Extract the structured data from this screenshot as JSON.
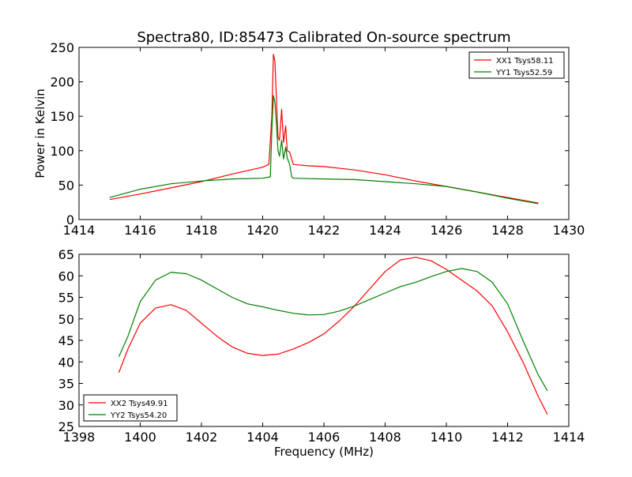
{
  "chart_data": {
    "type": "line",
    "title": "Spectra80, ID:85473 Calibrated On-source spectrum",
    "panels": [
      {
        "xlim": [
          1414,
          1430
        ],
        "ylim": [
          0,
          250
        ],
        "xticks": [
          1414,
          1416,
          1418,
          1420,
          1422,
          1424,
          1426,
          1428,
          1430
        ],
        "yticks": [
          0,
          50,
          100,
          150,
          200,
          250
        ],
        "xlabel": "",
        "ylabel": "Power in Kelvin",
        "legend_position": "upper-right",
        "series": [
          {
            "name": "XX1 Tsys58.11",
            "color": "#ff0000",
            "points": [
              [
                1415,
                29
              ],
              [
                1416,
                37
              ],
              [
                1417,
                46
              ],
              [
                1418,
                55
              ],
              [
                1419,
                66
              ],
              [
                1420,
                76
              ],
              [
                1420.2,
                80
              ],
              [
                1420.3,
                150
              ],
              [
                1420.35,
                240
              ],
              [
                1420.4,
                230
              ],
              [
                1420.45,
                175
              ],
              [
                1420.5,
                120
              ],
              [
                1420.55,
                115
              ],
              [
                1420.62,
                160
              ],
              [
                1420.68,
                112
              ],
              [
                1420.75,
                136
              ],
              [
                1420.8,
                100
              ],
              [
                1420.88,
                98
              ],
              [
                1421.0,
                80
              ],
              [
                1421.5,
                78
              ],
              [
                1422,
                77
              ],
              [
                1423,
                72
              ],
              [
                1424,
                65
              ],
              [
                1425,
                56
              ],
              [
                1426,
                48
              ],
              [
                1427,
                40
              ],
              [
                1428,
                32
              ],
              [
                1429,
                24
              ]
            ]
          },
          {
            "name": "YY1 Tsys52.59",
            "color": "#008000",
            "points": [
              [
                1415,
                32
              ],
              [
                1416,
                44
              ],
              [
                1417,
                52
              ],
              [
                1418,
                56
              ],
              [
                1419,
                59
              ],
              [
                1420,
                60
              ],
              [
                1420.25,
                62
              ],
              [
                1420.3,
                130
              ],
              [
                1420.35,
                180
              ],
              [
                1420.4,
                170
              ],
              [
                1420.45,
                140
              ],
              [
                1420.5,
                100
              ],
              [
                1420.55,
                92
              ],
              [
                1420.62,
                115
              ],
              [
                1420.68,
                88
              ],
              [
                1420.75,
                105
              ],
              [
                1420.8,
                90
              ],
              [
                1420.88,
                80
              ],
              [
                1420.95,
                62
              ],
              [
                1421.0,
                60
              ],
              [
                1422,
                59
              ],
              [
                1423,
                58
              ],
              [
                1424,
                55
              ],
              [
                1425,
                52
              ],
              [
                1426,
                48
              ],
              [
                1427,
                40
              ],
              [
                1428,
                31
              ],
              [
                1429,
                23
              ]
            ]
          }
        ]
      },
      {
        "xlim": [
          1398,
          1414
        ],
        "ylim": [
          25,
          65
        ],
        "xticks": [
          1398,
          1400,
          1402,
          1404,
          1406,
          1408,
          1410,
          1412,
          1414
        ],
        "yticks": [
          25,
          30,
          35,
          40,
          45,
          50,
          55,
          60,
          65
        ],
        "xlabel": "Frequency (MHz)",
        "ylabel": "",
        "legend_position": "lower-left",
        "series": [
          {
            "name": "XX2 Tsys49.91",
            "color": "#ff0000",
            "points": [
              [
                1399.3,
                37.5
              ],
              [
                1399.6,
                43
              ],
              [
                1400,
                49
              ],
              [
                1400.5,
                52.5
              ],
              [
                1401,
                53.3
              ],
              [
                1401.5,
                52
              ],
              [
                1402,
                49
              ],
              [
                1402.5,
                46
              ],
              [
                1403,
                43.5
              ],
              [
                1403.5,
                42
              ],
              [
                1404,
                41.5
              ],
              [
                1404.5,
                41.8
              ],
              [
                1405,
                43
              ],
              [
                1405.5,
                44.5
              ],
              [
                1406,
                46.5
              ],
              [
                1406.5,
                49.5
              ],
              [
                1407,
                53
              ],
              [
                1407.5,
                57
              ],
              [
                1408,
                61
              ],
              [
                1408.5,
                63.7
              ],
              [
                1409,
                64.3
              ],
              [
                1409.5,
                63.5
              ],
              [
                1410,
                61.5
              ],
              [
                1410.5,
                59
              ],
              [
                1411,
                56.5
              ],
              [
                1411.5,
                53
              ],
              [
                1412,
                47
              ],
              [
                1412.5,
                40
              ],
              [
                1413,
                32
              ],
              [
                1413.3,
                27.8
              ]
            ]
          },
          {
            "name": "YY2 Tsys54.20",
            "color": "#008000",
            "points": [
              [
                1399.3,
                41.2
              ],
              [
                1399.6,
                46
              ],
              [
                1400,
                54
              ],
              [
                1400.5,
                59
              ],
              [
                1401,
                60.8
              ],
              [
                1401.5,
                60.5
              ],
              [
                1402,
                59
              ],
              [
                1402.5,
                57
              ],
              [
                1403,
                55
              ],
              [
                1403.5,
                53.5
              ],
              [
                1404,
                52.8
              ],
              [
                1404.5,
                52
              ],
              [
                1405,
                51.3
              ],
              [
                1405.5,
                50.9
              ],
              [
                1406,
                51
              ],
              [
                1406.5,
                51.8
              ],
              [
                1407,
                53
              ],
              [
                1407.5,
                54.5
              ],
              [
                1408,
                56
              ],
              [
                1408.5,
                57.5
              ],
              [
                1409,
                58.5
              ],
              [
                1409.5,
                59.8
              ],
              [
                1410,
                61
              ],
              [
                1410.5,
                61.7
              ],
              [
                1411,
                61
              ],
              [
                1411.5,
                58.5
              ],
              [
                1412,
                53.5
              ],
              [
                1412.5,
                45
              ],
              [
                1413,
                37
              ],
              [
                1413.3,
                33.3
              ]
            ]
          }
        ]
      }
    ]
  }
}
